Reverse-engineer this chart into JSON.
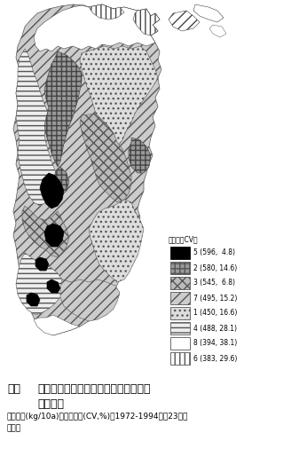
{
  "title_line1": "図１　収量水準とその変動による冷害危険度",
  "title_line2": "地帯区分",
  "caption1": "平均収量(kg/10a)と変動係数(CV,%)は1972-1994年，23年間",
  "caption2": "の値。",
  "legend_header": "（平均，CV）",
  "legend_items": [
    {
      "label": "5 (596,  4.8)",
      "fc": "#000000",
      "hatch": "",
      "ec": "#000000"
    },
    {
      "label": "2 (580, 14.6)",
      "fc": "#999999",
      "hatch": "+++",
      "ec": "#555555"
    },
    {
      "label": "3 (545,  6.8)",
      "fc": "#bbbbbb",
      "hatch": "xxx",
      "ec": "#555555"
    },
    {
      "label": "7 (495, 15.2)",
      "fc": "#cccccc",
      "hatch": "///",
      "ec": "#555555"
    },
    {
      "label": "1 (450, 16.6)",
      "fc": "#dddddd",
      "hatch": "...",
      "ec": "#555555"
    },
    {
      "label": "4 (488, 28.1)",
      "fc": "#eeeeee",
      "hatch": "---",
      "ec": "#555555"
    },
    {
      "label": "8 (394, 38.1)",
      "fc": "#ffffff",
      "hatch": "",
      "ec": "#555555"
    },
    {
      "label": "6 (383, 29.6)",
      "fc": "#ffffff",
      "hatch": "|||",
      "ec": "#555555"
    }
  ],
  "bg_color": "#ffffff",
  "fig_width": 3.46,
  "fig_height": 5.32,
  "dpi": 100
}
